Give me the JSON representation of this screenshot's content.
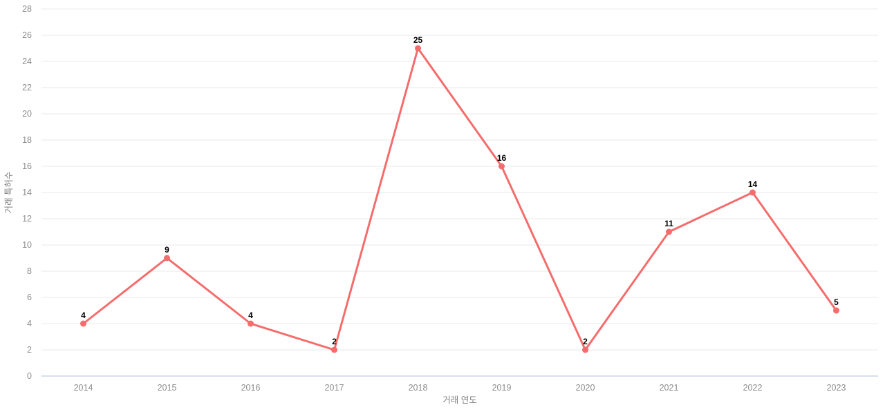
{
  "chart_data": {
    "type": "line",
    "title": "",
    "x": [
      "2014",
      "2015",
      "2016",
      "2017",
      "2018",
      "2019",
      "2020",
      "2021",
      "2022",
      "2023"
    ],
    "values": [
      4,
      9,
      4,
      2,
      25,
      16,
      2,
      11,
      14,
      5
    ],
    "point_labels": [
      "4",
      "9",
      "4",
      "2",
      "25",
      "16",
      "2",
      "11",
      "14",
      "5"
    ],
    "xlabel": "거래 연도",
    "ylabel": "거래 특허수",
    "ylim": [
      0,
      28
    ],
    "ytick_step": 2,
    "grid": "horizontal-only",
    "legend_position": "none",
    "colors": {
      "line": "#f56c6c",
      "point": "#f56c6c",
      "grid_line": "#e8e8e8",
      "zero_axis_line": "#ccd3ea",
      "tick_text": "#8c8c8c",
      "axis_title_text": "#7f7f7f",
      "value_label_text": "#000000",
      "background": "#ffffff"
    }
  }
}
